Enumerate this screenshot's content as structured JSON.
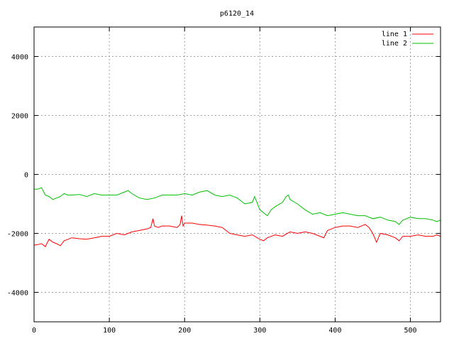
{
  "chart_data": {
    "type": "line",
    "title": "p6120_14",
    "xlabel": "",
    "ylabel": "",
    "xlim": [
      0,
      540
    ],
    "ylim": [
      -5000,
      5000
    ],
    "x_ticks": [
      0,
      100,
      200,
      300,
      400,
      500
    ],
    "y_ticks": [
      -4000,
      -2000,
      0,
      2000,
      4000
    ],
    "grid": true,
    "legend_position": "top-right",
    "series": [
      {
        "name": "line 1",
        "color": "#ff0000",
        "x": [
          0,
          5,
          10,
          15,
          20,
          25,
          30,
          35,
          40,
          45,
          50,
          60,
          70,
          80,
          90,
          100,
          110,
          120,
          130,
          140,
          150,
          155,
          158,
          160,
          165,
          170,
          180,
          190,
          194,
          196,
          198,
          200,
          210,
          220,
          230,
          240,
          250,
          260,
          270,
          280,
          290,
          300,
          305,
          310,
          320,
          330,
          340,
          350,
          360,
          370,
          380,
          385,
          390,
          400,
          410,
          420,
          430,
          440,
          445,
          450,
          455,
          460,
          470,
          480,
          485,
          490,
          500,
          510,
          520,
          530,
          535,
          540
        ],
        "y": [
          -2400,
          -2380,
          -2350,
          -2450,
          -2200,
          -2300,
          -2350,
          -2420,
          -2250,
          -2200,
          -2150,
          -2180,
          -2200,
          -2150,
          -2100,
          -2100,
          -2000,
          -2050,
          -1950,
          -1900,
          -1850,
          -1800,
          -1500,
          -1750,
          -1800,
          -1750,
          -1750,
          -1800,
          -1700,
          -1400,
          -1750,
          -1650,
          -1650,
          -1700,
          -1720,
          -1750,
          -1800,
          -2000,
          -2050,
          -2100,
          -2050,
          -2200,
          -2250,
          -2150,
          -2050,
          -2100,
          -1950,
          -2000,
          -1950,
          -2000,
          -2100,
          -2150,
          -1900,
          -1800,
          -1750,
          -1750,
          -1800,
          -1700,
          -1800,
          -2000,
          -2300,
          -2000,
          -2050,
          -2150,
          -2250,
          -2100,
          -2100,
          -2050,
          -2100,
          -2100,
          -2050,
          -2100
        ]
      },
      {
        "name": "line 2",
        "color": "#00c000",
        "x": [
          0,
          5,
          10,
          15,
          20,
          25,
          30,
          35,
          40,
          45,
          50,
          60,
          70,
          80,
          90,
          100,
          110,
          120,
          125,
          130,
          140,
          150,
          160,
          170,
          180,
          190,
          200,
          210,
          220,
          230,
          240,
          250,
          260,
          270,
          280,
          290,
          293,
          300,
          310,
          315,
          320,
          330,
          335,
          338,
          340,
          350,
          360,
          370,
          380,
          390,
          400,
          410,
          420,
          430,
          440,
          450,
          460,
          470,
          480,
          485,
          490,
          500,
          510,
          520,
          530,
          535,
          540
        ],
        "y": [
          -500,
          -500,
          -450,
          -700,
          -750,
          -850,
          -800,
          -750,
          -650,
          -700,
          -700,
          -680,
          -750,
          -650,
          -700,
          -700,
          -700,
          -600,
          -550,
          -650,
          -800,
          -850,
          -800,
          -700,
          -700,
          -700,
          -650,
          -700,
          -600,
          -550,
          -700,
          -750,
          -700,
          -800,
          -1000,
          -950,
          -750,
          -1200,
          -1400,
          -1200,
          -1100,
          -950,
          -750,
          -700,
          -850,
          -1000,
          -1200,
          -1350,
          -1300,
          -1400,
          -1350,
          -1300,
          -1350,
          -1400,
          -1400,
          -1500,
          -1450,
          -1550,
          -1600,
          -1700,
          -1550,
          -1450,
          -1500,
          -1500,
          -1550,
          -1600,
          -1550
        ]
      }
    ]
  }
}
